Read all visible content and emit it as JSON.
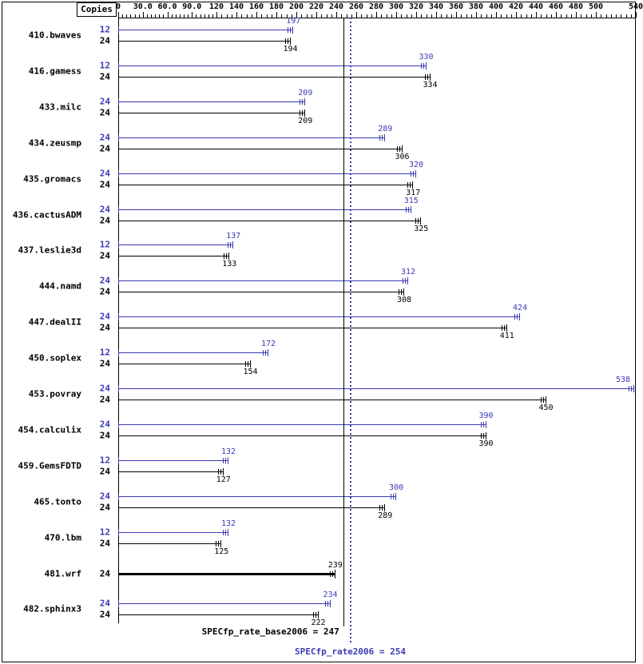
{
  "copies_header_note": "",
  "colors": {
    "peak": "#3a3ab4",
    "base": "#000000",
    "background": "#ffffff"
  },
  "chart_data": {
    "type": "bar",
    "orientation": "horizontal",
    "copies_header": "Copies",
    "legend_position": "none",
    "grid": false,
    "xlim": [
      0,
      545
    ],
    "axis_ticks": [
      0,
      30,
      60,
      90,
      120,
      140,
      160,
      180,
      200,
      220,
      240,
      260,
      280,
      300,
      320,
      340,
      360,
      380,
      400,
      420,
      440,
      460,
      480,
      500,
      540
    ],
    "axis_tick_labels": [
      "0",
      "30.0",
      "60.0",
      "90.0",
      "120",
      "140",
      "160",
      "180",
      "200",
      "220",
      "240",
      "260",
      "280",
      "300",
      "320",
      "340",
      "360",
      "380",
      "400",
      "420",
      "440",
      "460",
      "480",
      "500",
      "540"
    ],
    "benchmarks": [
      {
        "name": "410.bwaves",
        "rows": [
          {
            "series": "peak",
            "copies": 12,
            "value": 197
          },
          {
            "series": "base",
            "copies": 24,
            "value": 194
          }
        ]
      },
      {
        "name": "416.gamess",
        "rows": [
          {
            "series": "peak",
            "copies": 12,
            "value": 330
          },
          {
            "series": "base",
            "copies": 24,
            "value": 334
          }
        ]
      },
      {
        "name": "433.milc",
        "rows": [
          {
            "series": "peak",
            "copies": 24,
            "value": 209
          },
          {
            "series": "base",
            "copies": 24,
            "value": 209
          }
        ]
      },
      {
        "name": "434.zeusmp",
        "rows": [
          {
            "series": "peak",
            "copies": 24,
            "value": 289
          },
          {
            "series": "base",
            "copies": 24,
            "value": 306
          }
        ]
      },
      {
        "name": "435.gromacs",
        "rows": [
          {
            "series": "peak",
            "copies": 24,
            "value": 320
          },
          {
            "series": "base",
            "copies": 24,
            "value": 317
          }
        ]
      },
      {
        "name": "436.cactusADM",
        "rows": [
          {
            "series": "peak",
            "copies": 24,
            "value": 315
          },
          {
            "series": "base",
            "copies": 24,
            "value": 325
          }
        ]
      },
      {
        "name": "437.leslie3d",
        "rows": [
          {
            "series": "peak",
            "copies": 12,
            "value": 137
          },
          {
            "series": "base",
            "copies": 24,
            "value": 133
          }
        ]
      },
      {
        "name": "444.namd",
        "rows": [
          {
            "series": "peak",
            "copies": 24,
            "value": 312
          },
          {
            "series": "base",
            "copies": 24,
            "value": 308
          }
        ]
      },
      {
        "name": "447.dealII",
        "rows": [
          {
            "series": "peak",
            "copies": 24,
            "value": 424
          },
          {
            "series": "base",
            "copies": 24,
            "value": 411
          }
        ]
      },
      {
        "name": "450.soplex",
        "rows": [
          {
            "series": "peak",
            "copies": 12,
            "value": 172
          },
          {
            "series": "base",
            "copies": 24,
            "value": 154
          }
        ]
      },
      {
        "name": "453.povray",
        "rows": [
          {
            "series": "peak",
            "copies": 24,
            "value": 538
          },
          {
            "series": "base",
            "copies": 24,
            "value": 450
          }
        ]
      },
      {
        "name": "454.calculix",
        "rows": [
          {
            "series": "peak",
            "copies": 24,
            "value": 390
          },
          {
            "series": "base",
            "copies": 24,
            "value": 390
          }
        ]
      },
      {
        "name": "459.GemsFDTD",
        "rows": [
          {
            "series": "peak",
            "copies": 12,
            "value": 132
          },
          {
            "series": "base",
            "copies": 24,
            "value": 127
          }
        ]
      },
      {
        "name": "465.tonto",
        "rows": [
          {
            "series": "peak",
            "copies": 24,
            "value": 300
          },
          {
            "series": "base",
            "copies": 24,
            "value": 289
          }
        ]
      },
      {
        "name": "470.lbm",
        "rows": [
          {
            "series": "peak",
            "copies": 12,
            "value": 132
          },
          {
            "series": "base",
            "copies": 24,
            "value": 125
          }
        ]
      },
      {
        "name": "481.wrf",
        "rows": [
          {
            "series": "base",
            "copies": 24,
            "value": 239,
            "bold": true
          }
        ]
      },
      {
        "name": "482.sphinx3",
        "rows": [
          {
            "series": "peak",
            "copies": 24,
            "value": 234
          },
          {
            "series": "base",
            "copies": 24,
            "value": 222
          }
        ]
      }
    ],
    "reference_lines": [
      {
        "label": "SPECfp_rate_base2006 = 247",
        "value": 247,
        "style": "solid",
        "color": "#000000"
      },
      {
        "label": "SPECfp_rate2006 = 254",
        "value": 254,
        "style": "dotted",
        "color": "#3a3ab4"
      }
    ]
  }
}
